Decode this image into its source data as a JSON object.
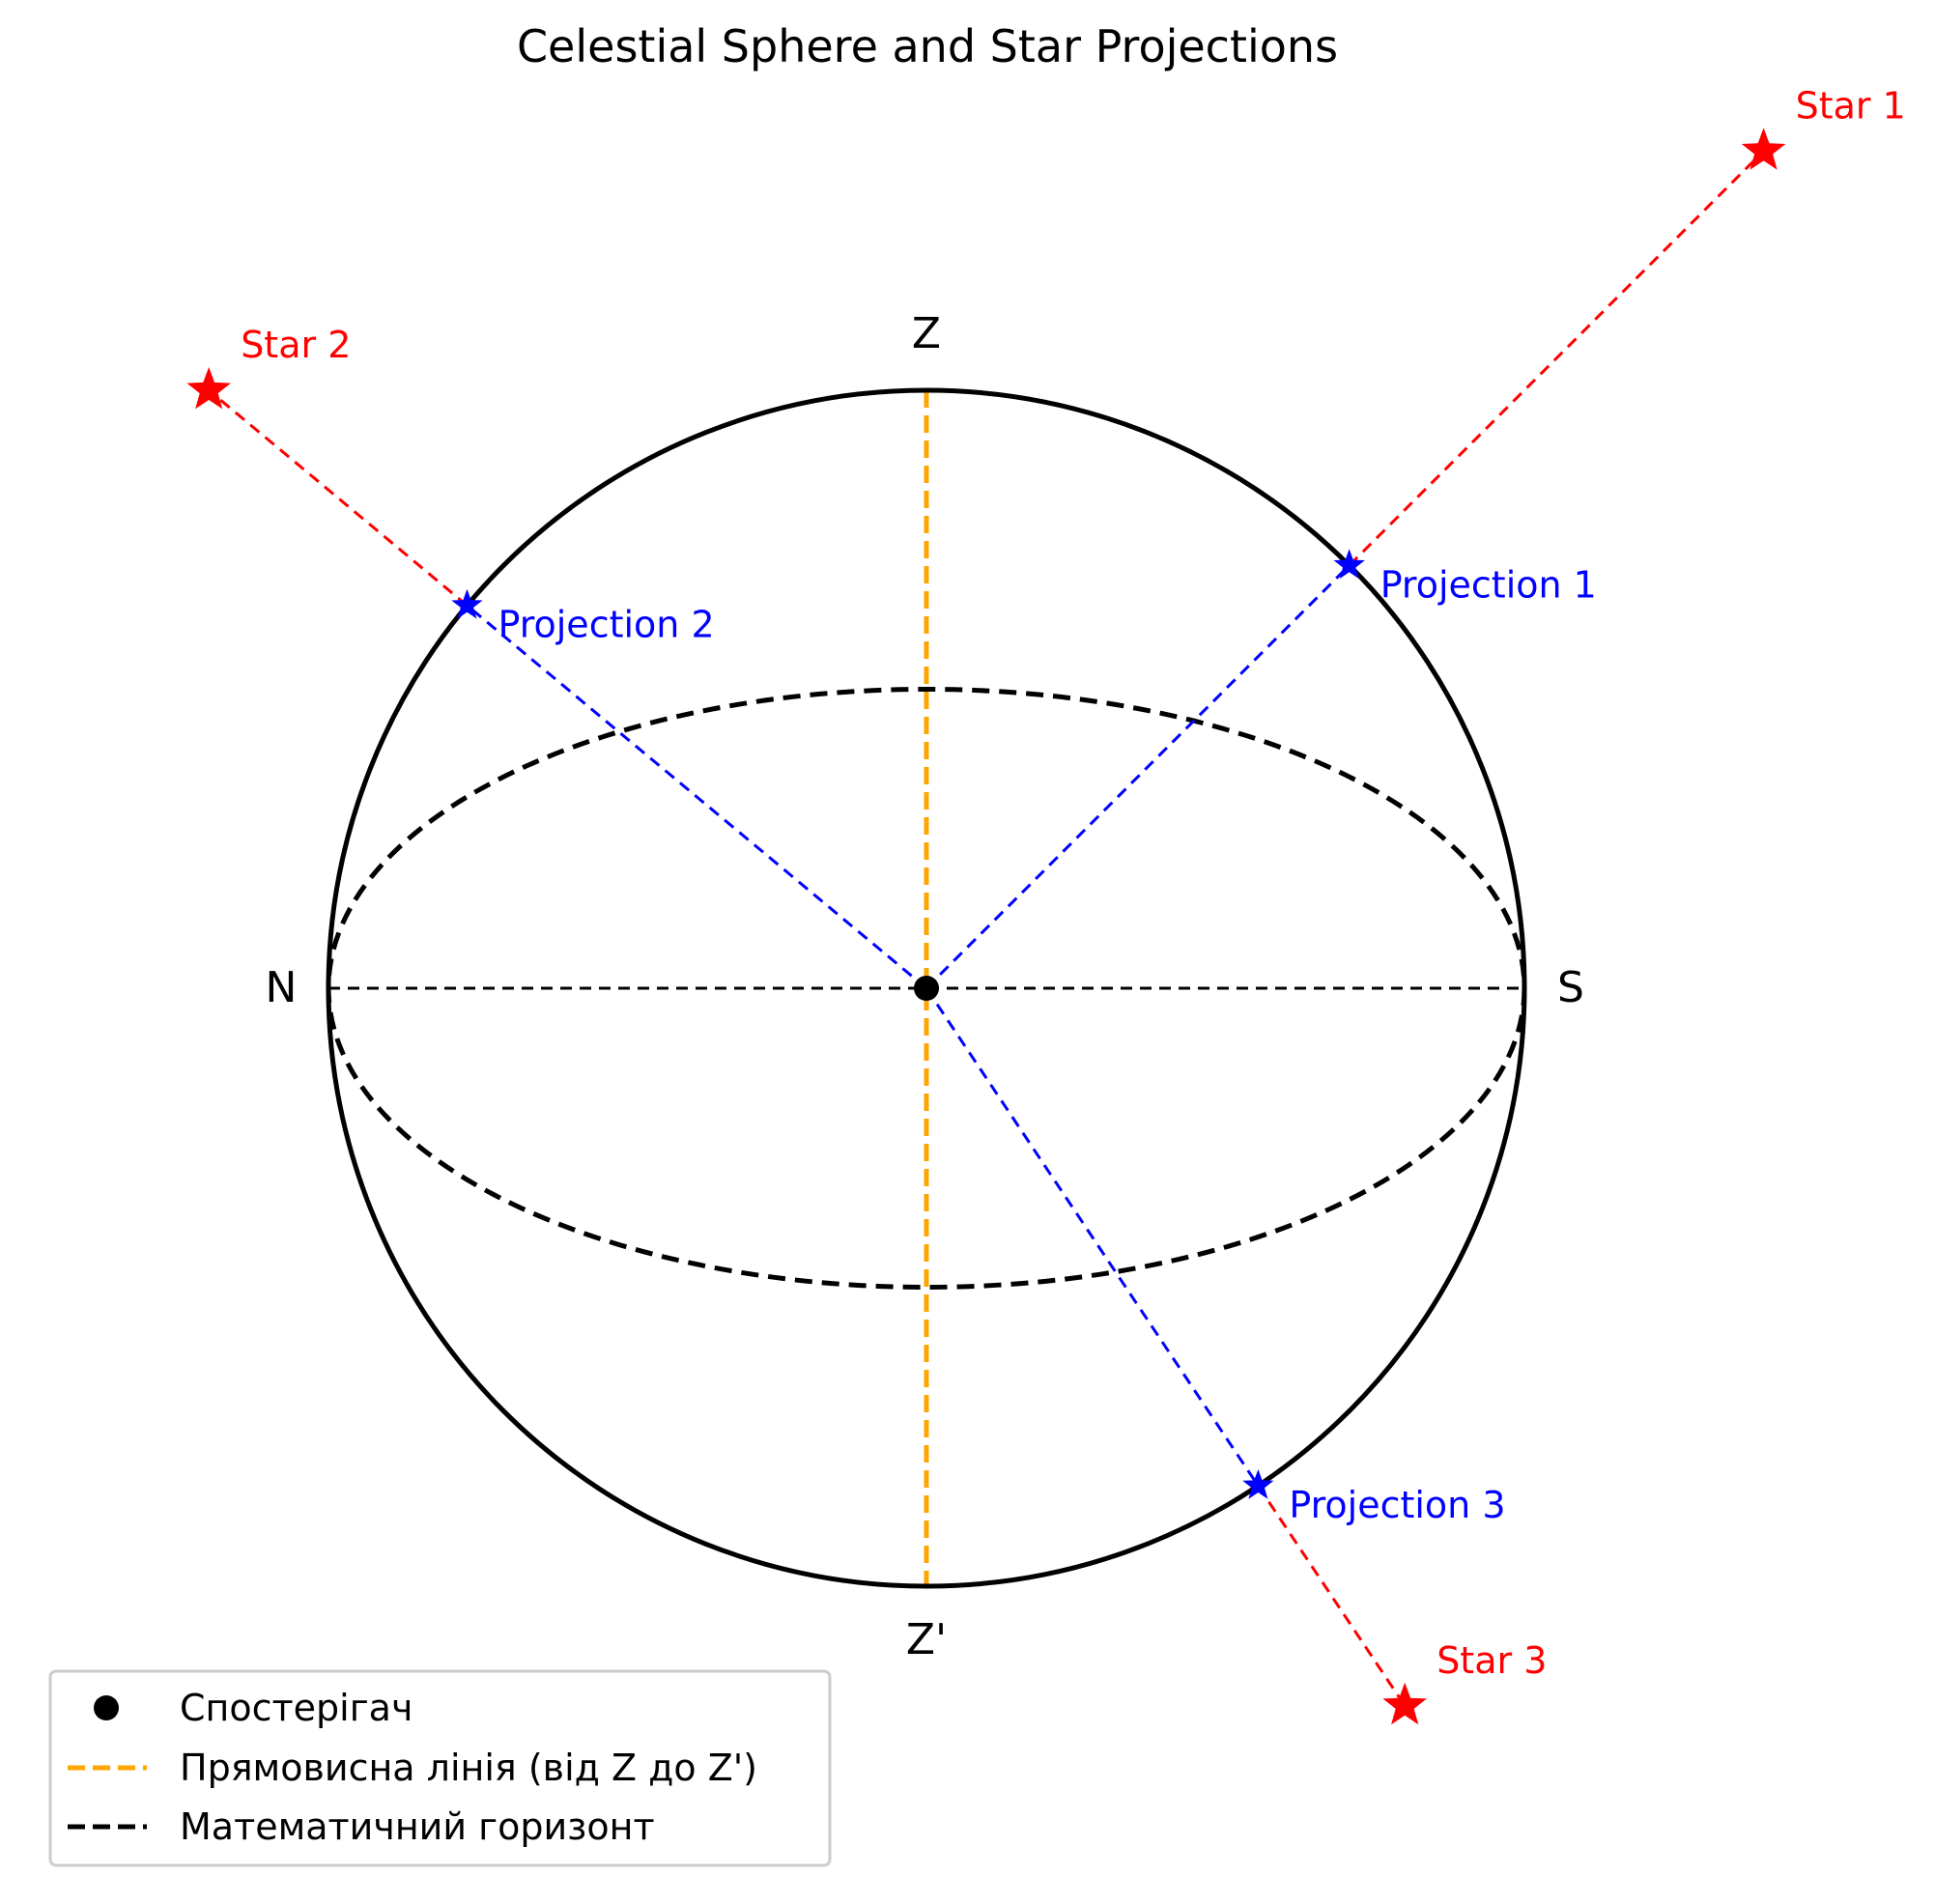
{
  "title": "Celestial Sphere and Star Projections",
  "points": {
    "zenith": "Z",
    "nadir": "Z'",
    "north": "N",
    "south": "S"
  },
  "stars": [
    {
      "label": "Star 1",
      "projection_label": "Projection 1",
      "x": 1.4,
      "y": 1.4
    },
    {
      "label": "Star 2",
      "projection_label": "Projection 2",
      "x": -1.2,
      "y": 1.0
    },
    {
      "label": "Star 3",
      "projection_label": "Projection 3",
      "x": 0.8,
      "y": -1.2
    }
  ],
  "horizon_ellipse_ratio": 0.5,
  "legend": {
    "observer": "Спостерігач",
    "vertical_line": "Прямовисна лінія (від Z до Z')",
    "horizon": "Математичний горизонт"
  },
  "colors": {
    "sphere": "#000000",
    "vertical_line": "#FFA500",
    "star": "#FF0000",
    "projection": "#0000FF",
    "horizon": "#000000"
  },
  "icons": {
    "star": "star-icon",
    "projection": "star-icon",
    "observer": "dot-icon"
  }
}
